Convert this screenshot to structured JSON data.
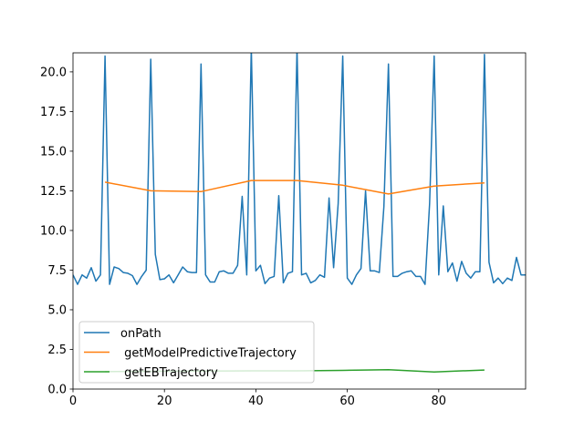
{
  "chart_data": {
    "type": "line",
    "title": "",
    "xlabel": "",
    "ylabel": "",
    "xlim": [
      0,
      99
    ],
    "ylim": [
      0,
      21.2
    ],
    "grid": false,
    "legend_placement": "lower-left",
    "x_ticks": [
      "0",
      "20",
      "40",
      "60",
      "80"
    ],
    "x_tick_values": [
      0,
      20,
      40,
      60,
      80
    ],
    "y_ticks": [
      "0.0",
      "2.5",
      "5.0",
      "7.5",
      "10.0",
      "12.5",
      "15.0",
      "17.5",
      "20.0"
    ],
    "y_tick_values": [
      0,
      2.5,
      5,
      7.5,
      10,
      12.5,
      15,
      17.5,
      20
    ],
    "series": [
      {
        "name": "onPath",
        "color": "#1f77b4",
        "x": [
          0,
          1,
          2,
          3,
          4,
          5,
          6,
          7,
          8,
          9,
          10,
          11,
          12,
          13,
          14,
          15,
          16,
          17,
          18,
          19,
          20,
          21,
          22,
          23,
          24,
          25,
          26,
          27,
          28,
          29,
          30,
          31,
          32,
          33,
          34,
          35,
          36,
          37,
          38,
          39,
          40,
          41,
          42,
          43,
          44,
          45,
          46,
          47,
          48,
          49,
          50,
          51,
          52,
          53,
          54,
          55,
          56,
          57,
          58,
          59,
          60,
          61,
          62,
          63,
          64,
          65,
          66,
          67,
          68,
          69,
          70,
          71,
          72,
          73,
          74,
          75,
          76,
          77,
          78,
          79,
          80,
          81,
          82,
          83,
          84,
          85,
          86,
          87,
          88,
          89,
          90,
          91,
          92,
          93,
          94,
          95,
          96,
          97,
          98,
          99
        ],
        "y": [
          7.2,
          6.6,
          7.2,
          7.0,
          7.65,
          6.8,
          7.2,
          21.0,
          6.6,
          7.7,
          7.6,
          7.35,
          7.3,
          7.15,
          6.6,
          7.1,
          7.5,
          20.8,
          8.5,
          6.9,
          6.95,
          7.2,
          6.7,
          7.2,
          7.7,
          7.4,
          7.35,
          7.35,
          20.5,
          7.2,
          6.75,
          6.75,
          7.4,
          7.45,
          7.3,
          7.3,
          7.8,
          12.15,
          7.2,
          21.5,
          7.45,
          7.8,
          6.65,
          7.0,
          7.1,
          12.2,
          6.7,
          7.3,
          7.4,
          21.5,
          7.2,
          7.3,
          6.7,
          6.85,
          7.2,
          7.05,
          12.05,
          7.65,
          11.7,
          21.0,
          7.0,
          6.6,
          7.2,
          7.6,
          12.5,
          7.45,
          7.45,
          7.35,
          11.5,
          20.5,
          7.1,
          7.1,
          7.3,
          7.4,
          7.45,
          7.1,
          7.1,
          6.6,
          11.7,
          21.0,
          7.2,
          11.55,
          7.4,
          7.95,
          6.8,
          8.05,
          7.3,
          7.0,
          7.4,
          7.4,
          21.1,
          8.0,
          6.7,
          7.0,
          6.65,
          7.0,
          6.85,
          8.3,
          7.2,
          7.2
        ]
      },
      {
        "name": " getModelPredictiveTrajectory",
        "color": "#ff7f0e",
        "x": [
          7,
          17,
          28,
          39,
          49,
          59,
          69,
          79,
          90
        ],
        "y": [
          13.05,
          12.5,
          12.45,
          13.15,
          13.15,
          12.85,
          12.3,
          12.8,
          13.0
        ]
      },
      {
        "name": " getEBTrajectory",
        "color": "#2ca02c",
        "x": [
          7,
          17,
          28,
          39,
          49,
          59,
          69,
          79,
          90
        ],
        "y": [
          1.1,
          1.12,
          1.13,
          1.15,
          1.15,
          1.18,
          1.22,
          1.08,
          1.2
        ]
      }
    ]
  }
}
